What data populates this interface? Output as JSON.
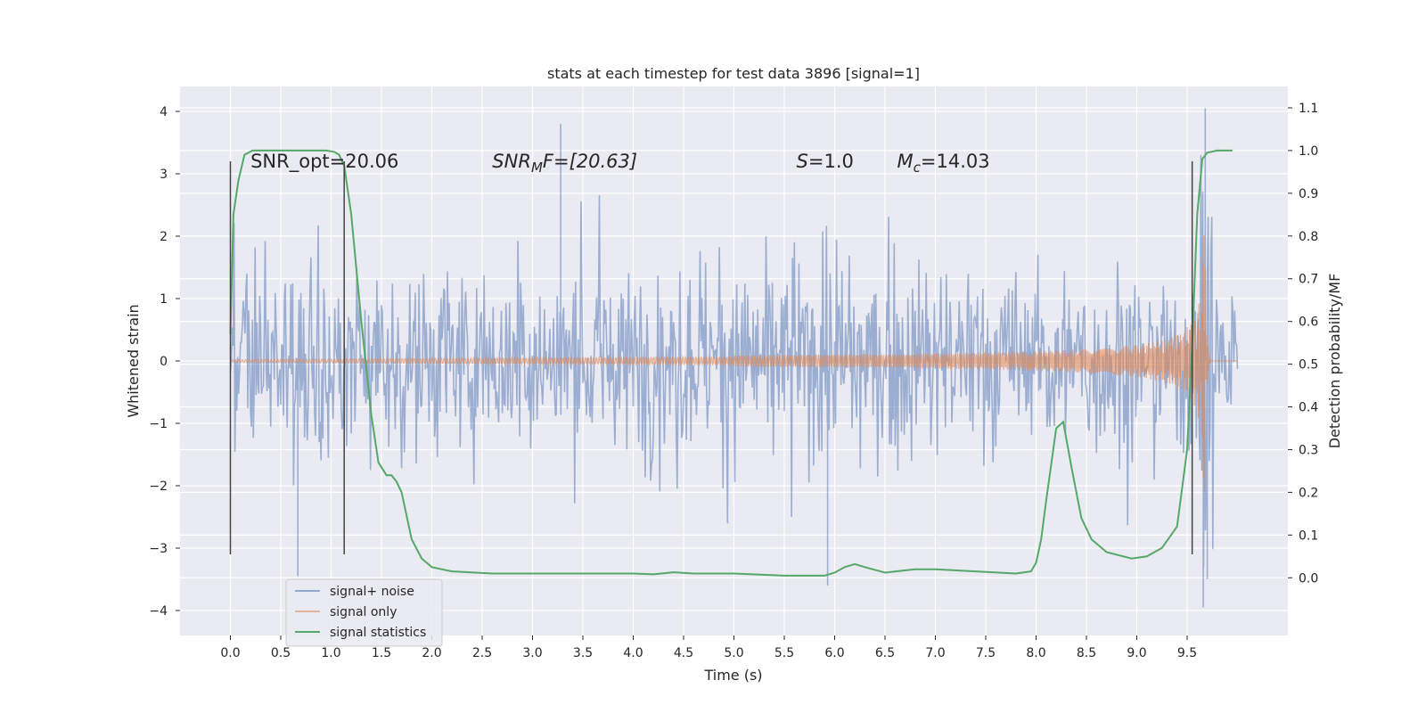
{
  "chart_data": {
    "type": "line",
    "title": "stats at each timestep for test data 3896 [signal=1]",
    "xlabel": "Time (s)",
    "ylabel": "Whitened strain",
    "ylabel_right": "Detection probability/MF",
    "xlim": [
      -0.5,
      10.5
    ],
    "ylim": [
      -4.4,
      4.4
    ],
    "ylim_right": [
      -0.135,
      1.15
    ],
    "x_ticks": [
      "0.0",
      "0.5",
      "1.0",
      "1.5",
      "2.0",
      "2.5",
      "3.0",
      "3.5",
      "4.0",
      "4.5",
      "5.0",
      "5.5",
      "6.0",
      "6.5",
      "7.0",
      "7.5",
      "8.0",
      "8.5",
      "9.0",
      "9.5"
    ],
    "y_ticks": [
      "4",
      "3",
      "2",
      "1",
      "0",
      "−1",
      "−2",
      "−3",
      "−4"
    ],
    "y_ticks_right": [
      "1.1",
      "1.0",
      "0.9",
      "0.8",
      "0.7",
      "0.6",
      "0.5",
      "0.4",
      "0.3",
      "0.2",
      "0.1",
      "0.0"
    ],
    "grid": true,
    "legend_position": "lower-left",
    "colors": {
      "background": "#eaeaf2",
      "grid": "#ffffff",
      "signal_noise": "#4c72b0",
      "signal_only": "#dd8452",
      "statistics": "#55a868",
      "vline": "#444444"
    },
    "annotations": [
      {
        "text": "SNR_opt=20.06",
        "x": 0.2
      },
      {
        "text": "SNR",
        "sub": "M",
        "tail": "F=[20.63]",
        "x": 2.6
      },
      {
        "text": "S",
        "tail": "=1.0",
        "x": 5.62
      },
      {
        "text": "M",
        "sub": "c",
        "tail": "=14.03",
        "x": 6.62
      }
    ],
    "annotation_y": 3.2,
    "vertical_lines": [
      0.0,
      1.13,
      9.55
    ],
    "series": [
      {
        "name": "signal+ noise",
        "t_range": [
          0.0,
          10.0
        ],
        "envelope_min": -1.9,
        "envelope_max": 1.9,
        "extremes": [
          [
            3.28,
            3.8
          ],
          [
            9.68,
            4.05
          ],
          [
            9.66,
            -3.95
          ],
          [
            0.67,
            -3.45
          ],
          [
            5.93,
            -3.6
          ],
          [
            9.7,
            -3.5
          ]
        ]
      },
      {
        "name": "signal only",
        "t_range": [
          0.0,
          10.0
        ],
        "chirp_peak_time": 9.68,
        "peak_amplitude": 3.55
      },
      {
        "name": "signal statistics",
        "x": [
          0.0,
          0.03,
          0.08,
          0.14,
          0.22,
          0.4,
          0.6,
          0.8,
          0.95,
          1.03,
          1.08,
          1.13,
          1.2,
          1.3,
          1.4,
          1.47,
          1.55,
          1.6,
          1.65,
          1.7,
          1.8,
          1.9,
          2.0,
          2.2,
          2.6,
          3.0,
          3.5,
          4.0,
          4.2,
          4.4,
          4.6,
          5.0,
          5.5,
          5.9,
          6.0,
          6.1,
          6.2,
          6.3,
          6.5,
          6.8,
          7.0,
          7.4,
          7.8,
          7.95,
          8.0,
          8.05,
          8.1,
          8.2,
          8.27,
          8.35,
          8.45,
          8.55,
          8.7,
          8.95,
          9.1,
          9.25,
          9.4,
          9.5,
          9.55,
          9.6,
          9.65,
          9.7,
          9.8,
          9.9,
          9.95
        ],
        "y": [
          0.57,
          0.85,
          0.93,
          0.99,
          1.0,
          1.0,
          1.0,
          1.0,
          1.0,
          0.997,
          0.99,
          0.965,
          0.85,
          0.6,
          0.38,
          0.27,
          0.24,
          0.24,
          0.225,
          0.2,
          0.09,
          0.045,
          0.025,
          0.015,
          0.01,
          0.01,
          0.01,
          0.01,
          0.008,
          0.013,
          0.01,
          0.01,
          0.005,
          0.005,
          0.012,
          0.025,
          0.032,
          0.025,
          0.012,
          0.02,
          0.02,
          0.015,
          0.01,
          0.015,
          0.035,
          0.09,
          0.18,
          0.35,
          0.365,
          0.26,
          0.14,
          0.09,
          0.06,
          0.045,
          0.05,
          0.07,
          0.12,
          0.3,
          0.55,
          0.85,
          0.98,
          0.995,
          1.0,
          1.0,
          1.0
        ]
      }
    ]
  }
}
